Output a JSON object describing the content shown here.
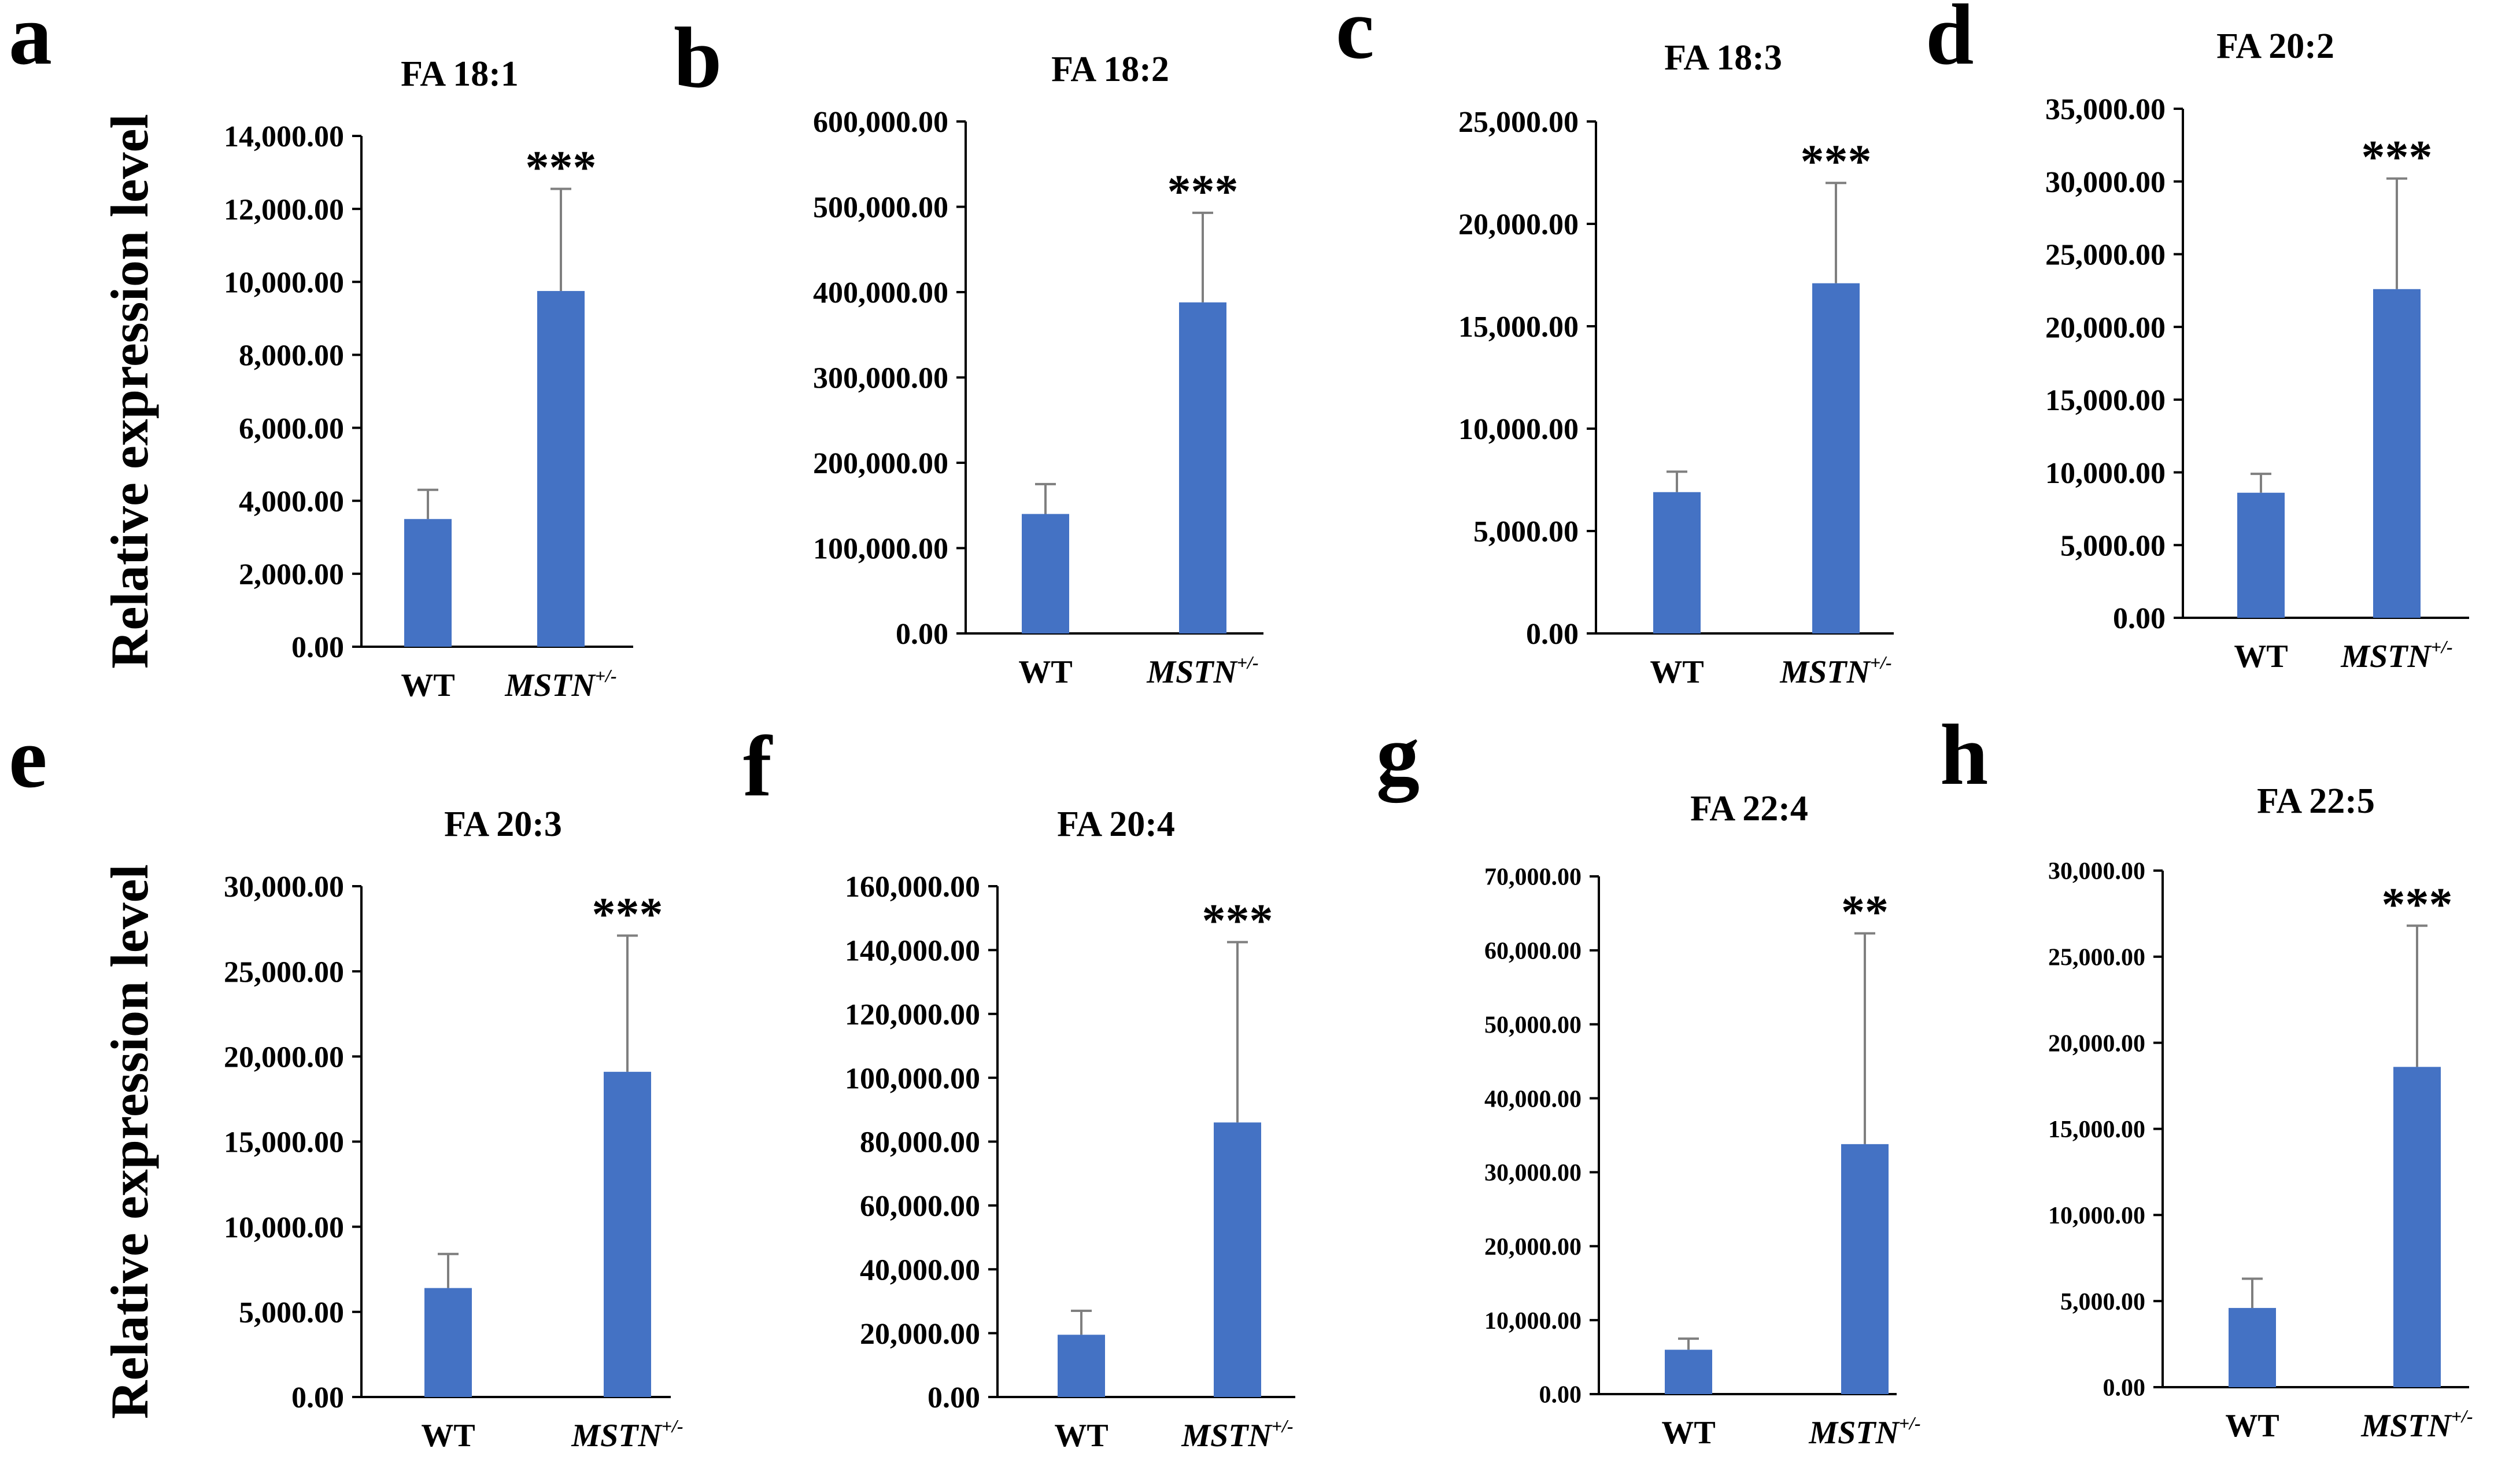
{
  "figure": {
    "y_axis_label": "Relative expression level",
    "bar_color": "#4472c4",
    "error_color": "#7f7f7f",
    "axis_color": "#000000"
  },
  "chart_data": [
    {
      "panel": "a",
      "type": "bar",
      "title": "FA 18:1",
      "categories": [
        "WT",
        "MSTN"
      ],
      "category_superscripts": [
        "",
        "+/-"
      ],
      "values": [
        3500,
        9750
      ],
      "errors": [
        800,
        2800
      ],
      "ylim": [
        0,
        14000
      ],
      "yticks": [
        0,
        2000,
        4000,
        6000,
        8000,
        10000,
        12000,
        14000
      ],
      "ytick_labels": [
        "0.00",
        "2,000.00",
        "4,000.00",
        "6,000.00",
        "8,000.00",
        "10,000.00",
        "12,000.00",
        "14,000.00"
      ],
      "significance": "***",
      "ylabel": "Relative expression level"
    },
    {
      "panel": "b",
      "type": "bar",
      "title": "FA 18:2",
      "categories": [
        "WT",
        "MSTN"
      ],
      "category_superscripts": [
        "",
        "+/-"
      ],
      "values": [
        140000,
        388000
      ],
      "errors": [
        35000,
        105000
      ],
      "ylim": [
        0,
        600000
      ],
      "yticks": [
        0,
        100000,
        200000,
        300000,
        400000,
        500000,
        600000
      ],
      "ytick_labels": [
        "0.00",
        "100,000.00",
        "200,000.00",
        "300,000.00",
        "400,000.00",
        "500,000.00",
        "600,000.00"
      ],
      "significance": "***",
      "ylabel": ""
    },
    {
      "panel": "c",
      "type": "bar",
      "title": "FA 18:3",
      "categories": [
        "WT",
        "MSTN"
      ],
      "category_superscripts": [
        "",
        "+/-"
      ],
      "values": [
        6900,
        17100
      ],
      "errors": [
        1000,
        4900
      ],
      "ylim": [
        0,
        25000
      ],
      "yticks": [
        0,
        5000,
        10000,
        15000,
        20000,
        25000
      ],
      "ytick_labels": [
        "0.00",
        "5,000.00",
        "10,000.00",
        "15,000.00",
        "20,000.00",
        "25,000.00"
      ],
      "significance": "***",
      "ylabel": ""
    },
    {
      "panel": "d",
      "type": "bar",
      "title": "FA 20:2",
      "categories": [
        "WT",
        "MSTN"
      ],
      "category_superscripts": [
        "",
        "+/-"
      ],
      "values": [
        8600,
        22600
      ],
      "errors": [
        1300,
        7600
      ],
      "ylim": [
        0,
        35000
      ],
      "yticks": [
        0,
        5000,
        10000,
        15000,
        20000,
        25000,
        30000,
        35000
      ],
      "ytick_labels": [
        "0.00",
        "5,000.00",
        "10,000.00",
        "15,000.00",
        "20,000.00",
        "25,000.00",
        "30,000.00",
        "35,000.00"
      ],
      "significance": "***",
      "ylabel": ""
    },
    {
      "panel": "e",
      "type": "bar",
      "title": "FA 20:3",
      "categories": [
        "WT",
        "MSTN"
      ],
      "category_superscripts": [
        "",
        "+/-"
      ],
      "values": [
        6400,
        19100
      ],
      "errors": [
        2000,
        8000
      ],
      "ylim": [
        0,
        30000
      ],
      "yticks": [
        0,
        5000,
        10000,
        15000,
        20000,
        25000,
        30000
      ],
      "ytick_labels": [
        "0.00",
        "5,000.00",
        "10,000.00",
        "15,000.00",
        "20,000.00",
        "25,000.00",
        "30,000.00"
      ],
      "significance": "***",
      "ylabel": "Relative expression level"
    },
    {
      "panel": "f",
      "type": "bar",
      "title": "FA 20:4",
      "categories": [
        "WT",
        "MSTN"
      ],
      "category_superscripts": [
        "",
        "+/-"
      ],
      "values": [
        19500,
        86000
      ],
      "errors": [
        7500,
        56500
      ],
      "ylim": [
        0,
        160000
      ],
      "yticks": [
        0,
        20000,
        40000,
        60000,
        80000,
        100000,
        120000,
        140000,
        160000
      ],
      "ytick_labels": [
        "0.00",
        "20,000.00",
        "40,000.00",
        "60,000.00",
        "80,000.00",
        "100,000.00",
        "120,000.00",
        "140,000.00",
        "160,000.00"
      ],
      "significance": "***",
      "ylabel": ""
    },
    {
      "panel": "g",
      "type": "bar",
      "title": "FA 22:4",
      "categories": [
        "WT",
        "MSTN"
      ],
      "category_superscripts": [
        "",
        "+/-"
      ],
      "values": [
        6000,
        33800
      ],
      "errors": [
        1500,
        28500
      ],
      "ylim": [
        0,
        70000
      ],
      "yticks": [
        0,
        10000,
        20000,
        30000,
        40000,
        50000,
        60000,
        70000
      ],
      "ytick_labels": [
        "0.00",
        "10,000.00",
        "20,000.00",
        "30,000.00",
        "40,000.00",
        "50,000.00",
        "60,000.00",
        "70,000.00"
      ],
      "significance": "**",
      "ylabel": ""
    },
    {
      "panel": "h",
      "type": "bar",
      "title": "FA 22:5",
      "categories": [
        "WT",
        "MSTN"
      ],
      "category_superscripts": [
        "",
        "+/-"
      ],
      "values": [
        4600,
        18600
      ],
      "errors": [
        1700,
        8200
      ],
      "ylim": [
        0,
        30000
      ],
      "yticks": [
        0,
        5000,
        10000,
        15000,
        20000,
        25000,
        30000
      ],
      "ytick_labels": [
        "0.00",
        "5,000.00",
        "10,000.00",
        "15,000.00",
        "20,000.00",
        "25,000.00",
        "30,000.00"
      ],
      "significance": "***",
      "ylabel": ""
    }
  ]
}
